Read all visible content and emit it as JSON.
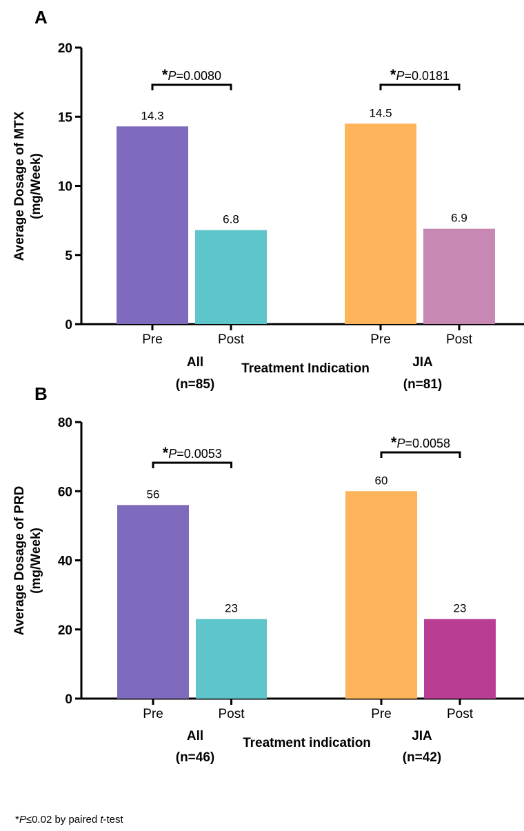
{
  "chart_data": [
    {
      "type": "bar",
      "panel": "A",
      "ylabel_line1": "Average Dosage of MTX",
      "ylabel_line2": "(mg/Week)",
      "xlabel": "Treatment Indication",
      "ylim": [
        0,
        20
      ],
      "yticks": [
        "0",
        "5",
        "10",
        "15",
        "20"
      ],
      "groups": [
        {
          "name_line1": "All",
          "name_line2": "(n=85)",
          "bars": [
            {
              "category": "Pre",
              "value": 14.3,
              "label": "14.3",
              "color": "#7f6bbd"
            },
            {
              "category": "Post",
              "value": 6.8,
              "label": "6.8",
              "color": "#5ec5ca"
            }
          ],
          "significance": {
            "star": "*",
            "p_italic": "P",
            "p_value": "=0.0080"
          }
        },
        {
          "name_line1": "JIA",
          "name_line2": "(n=81)",
          "bars": [
            {
              "category": "Pre",
              "value": 14.5,
              "label": "14.5",
              "color": "#fdb45a"
            },
            {
              "category": "Post",
              "value": 6.9,
              "label": "6.9",
              "color": "#c888b4"
            }
          ],
          "significance": {
            "star": "*",
            "p_italic": "P",
            "p_value": "=0.0181"
          }
        }
      ]
    },
    {
      "type": "bar",
      "panel": "B",
      "ylabel_line1": "Average Dosage of PRD",
      "ylabel_line2": "(mg/Week)",
      "xlabel": "Treatment indication",
      "ylim": [
        0,
        80
      ],
      "yticks": [
        "0",
        "20",
        "40",
        "60",
        "80"
      ],
      "groups": [
        {
          "name_line1": "All",
          "name_line2": "(n=46)",
          "bars": [
            {
              "category": "Pre",
              "value": 56,
              "label": "56",
              "color": "#7f6bbd"
            },
            {
              "category": "Post",
              "value": 23,
              "label": "23",
              "color": "#5ec5ca"
            }
          ],
          "significance": {
            "star": "*",
            "p_italic": "P",
            "p_value": "=0.0053"
          }
        },
        {
          "name_line1": "JIA",
          "name_line2": "(n=42)",
          "bars": [
            {
              "category": "Pre",
              "value": 60,
              "label": "60",
              "color": "#fdb45a"
            },
            {
              "category": "Post",
              "value": 23,
              "label": "23",
              "color": "#b93d93"
            }
          ],
          "significance": {
            "star": "*",
            "p_italic": "P",
            "p_value": "=0.0058"
          }
        }
      ]
    }
  ],
  "footnote": {
    "star": "*",
    "p_italic": "P",
    "condition": "≤0.02 by paired ",
    "t_italic": "t",
    "test": "-test"
  }
}
